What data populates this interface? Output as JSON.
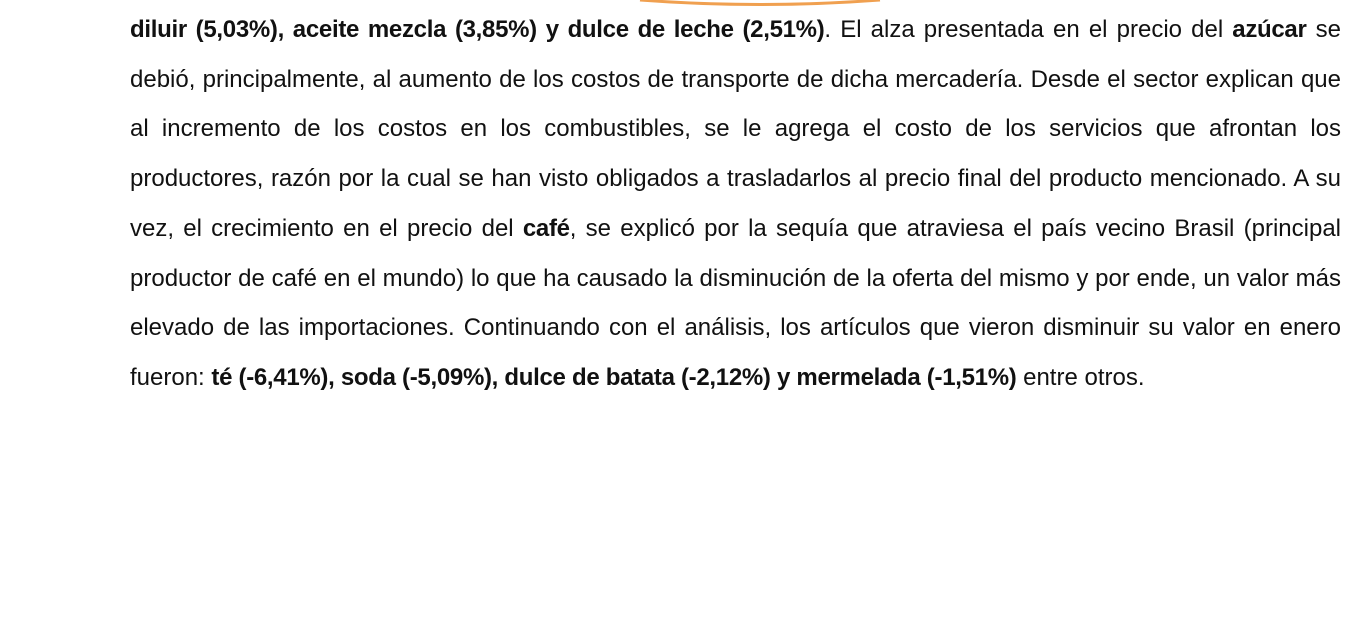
{
  "paragraph": {
    "runs": [
      {
        "text": "diluir (5,03%), aceite mezcla (3,85%) y dulce de leche (2,51%)",
        "bold": true
      },
      {
        "text": ". El alza presentada en el precio del ",
        "bold": false
      },
      {
        "text": "azúcar",
        "bold": true
      },
      {
        "text": " se debió, principalmente, al aumento de los costos de transporte de dicha mercadería. Desde el sector explican que al incremento de los costos en los combustibles, se le agrega el costo de los servicios que afrontan los productores, razón por la cual se han visto obligados a trasladarlos al precio final del producto mencionado. A su vez, el crecimiento en el precio del ",
        "bold": false
      },
      {
        "text": "café",
        "bold": true
      },
      {
        "text": ", se explicó por la sequía que atraviesa el país vecino Brasil (principal productor de café en el mundo) lo que ha causado la disminución de la oferta del mismo y por ende, un valor más elevado de las importaciones. Continuando con el análisis, los artículos que vieron disminuir su valor en enero fueron: ",
        "bold": false
      },
      {
        "text": "té (-6,41%), soda (-5,09%), dulce de batata (-2,12%) y mermelada (-1,51%)",
        "bold": true
      },
      {
        "text": " entre otros.",
        "bold": false
      }
    ]
  }
}
